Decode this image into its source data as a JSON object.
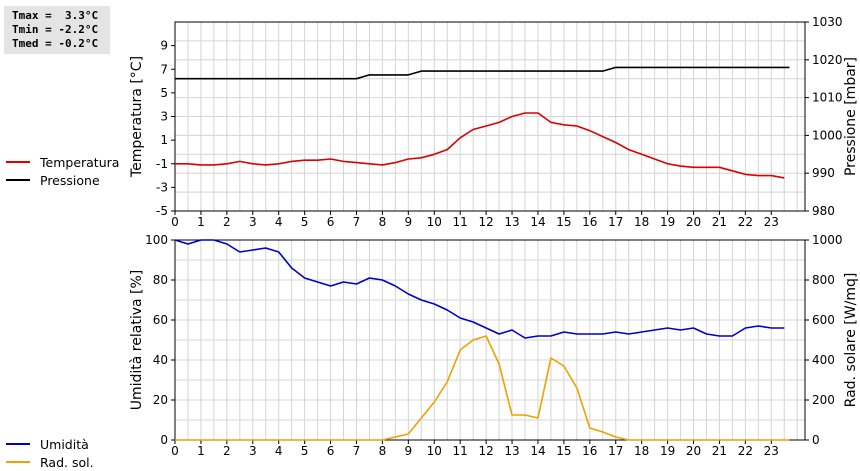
{
  "stats": {
    "tmax": "Tmax =  3.3°C",
    "tmin": "Tmin = -2.2°C",
    "tmed": "Tmed = -0.2°C"
  },
  "colors": {
    "temperature": "#dd0000",
    "pressure": "#000000",
    "humidity": "#0000cc",
    "solar": "#f0a000",
    "grid": "#d4d4d4"
  },
  "legend_top": [
    {
      "label": "Temperatura",
      "color": "#dd0000"
    },
    {
      "label": "Pressione",
      "color": "#000000"
    }
  ],
  "legend_bottom": [
    {
      "label": "Umidità",
      "color": "#0000cc"
    },
    {
      "label": "Rad. sol.",
      "color": "#f0a000"
    }
  ],
  "chart_data": [
    {
      "type": "line",
      "ylabel_left": "Temperatura [°C]",
      "ylabel_right": "Pressione [mbar]",
      "xlim": [
        0,
        24.3
      ],
      "ylim_left": [
        -5,
        11
      ],
      "ylim_right": [
        980,
        1030
      ],
      "xticks": [
        0,
        1,
        2,
        3,
        4,
        5,
        6,
        7,
        8,
        9,
        10,
        11,
        12,
        13,
        14,
        15,
        16,
        17,
        18,
        19,
        20,
        21,
        22,
        23
      ],
      "yticks_left": [
        -5,
        -3,
        -1,
        1,
        3,
        5,
        7,
        9
      ],
      "yticks_right": [
        980,
        990,
        1000,
        1010,
        1020,
        1030
      ],
      "grid": true,
      "series": [
        {
          "name": "Temperatura",
          "axis": "left",
          "x": [
            0,
            0.5,
            1,
            1.5,
            2,
            2.5,
            3,
            3.5,
            4,
            4.5,
            5,
            5.5,
            6,
            6.5,
            7,
            7.5,
            8,
            8.5,
            9,
            9.5,
            10,
            10.5,
            11,
            11.5,
            12,
            12.5,
            13,
            13.5,
            14,
            14.5,
            15,
            15.5,
            16,
            16.5,
            17,
            17.5,
            18,
            18.5,
            19,
            19.5,
            20,
            20.5,
            21,
            21.5,
            22,
            22.5,
            23,
            23.5
          ],
          "y": [
            -1.0,
            -1.0,
            -1.1,
            -1.1,
            -1.0,
            -0.8,
            -1.0,
            -1.1,
            -1.0,
            -0.8,
            -0.7,
            -0.7,
            -0.6,
            -0.8,
            -0.9,
            -1.0,
            -1.1,
            -0.9,
            -0.6,
            -0.5,
            -0.2,
            0.2,
            1.2,
            1.9,
            2.2,
            2.5,
            3.0,
            3.3,
            3.3,
            2.5,
            2.3,
            2.2,
            1.8,
            1.3,
            0.8,
            0.2,
            -0.2,
            -0.6,
            -1.0,
            -1.2,
            -1.3,
            -1.3,
            -1.3,
            -1.6,
            -1.9,
            -2.0,
            -2.0,
            -2.2
          ]
        },
        {
          "name": "Pressione",
          "axis": "right",
          "x": [
            0,
            1,
            2,
            3,
            4,
            5,
            6,
            7,
            7.5,
            8,
            9,
            9.5,
            10,
            11,
            12,
            13,
            14,
            15,
            16,
            16.5,
            17,
            18,
            19,
            20,
            21,
            22,
            23,
            23.7
          ],
          "y": [
            1015,
            1015,
            1015,
            1015,
            1015,
            1015,
            1015,
            1015,
            1016,
            1016,
            1016,
            1017,
            1017,
            1017,
            1017,
            1017,
            1017,
            1017,
            1017,
            1017,
            1018,
            1018,
            1018,
            1018,
            1018,
            1018,
            1018,
            1018
          ]
        }
      ]
    },
    {
      "type": "line",
      "ylabel_left": "Umidità relativa [%]",
      "ylabel_right": "Rad. solare [W/mq]",
      "xlim": [
        0,
        24.3
      ],
      "ylim_left": [
        0,
        100
      ],
      "ylim_right": [
        0,
        1000
      ],
      "xticks": [
        0,
        1,
        2,
        3,
        4,
        5,
        6,
        7,
        8,
        9,
        10,
        11,
        12,
        13,
        14,
        15,
        16,
        17,
        18,
        19,
        20,
        21,
        22,
        23
      ],
      "yticks_left": [
        0,
        20,
        40,
        60,
        80,
        100
      ],
      "yticks_right": [
        0,
        200,
        400,
        600,
        800,
        1000
      ],
      "grid": true,
      "series": [
        {
          "name": "Umidità",
          "axis": "left",
          "x": [
            0,
            0.5,
            1,
            1.5,
            2,
            2.5,
            3,
            3.5,
            4,
            4.5,
            5,
            5.5,
            6,
            6.5,
            7,
            7.5,
            8,
            8.5,
            9,
            9.5,
            10,
            10.5,
            11,
            11.5,
            12,
            12.5,
            13,
            13.5,
            14,
            14.5,
            15,
            15.5,
            16,
            16.5,
            17,
            17.5,
            18,
            18.5,
            19,
            19.5,
            20,
            20.5,
            21,
            21.5,
            22,
            22.5,
            23,
            23.5
          ],
          "y": [
            100,
            98,
            100,
            100,
            98,
            94,
            95,
            96,
            94,
            86,
            81,
            79,
            77,
            79,
            78,
            81,
            80,
            77,
            73,
            70,
            68,
            65,
            61,
            59,
            56,
            53,
            55,
            51,
            52,
            52,
            54,
            53,
            53,
            53,
            54,
            53,
            54,
            55,
            56,
            55,
            56,
            53,
            52,
            52,
            56,
            57,
            56,
            56
          ]
        },
        {
          "name": "Rad. sol.",
          "axis": "right",
          "x": [
            0,
            8,
            8.5,
            9,
            9.5,
            10,
            10.5,
            11,
            11.5,
            12,
            12.5,
            13,
            13.5,
            14,
            14.5,
            15,
            15.5,
            16,
            16.5,
            17,
            17.5,
            18,
            19,
            20,
            21,
            22,
            23,
            23.7
          ],
          "y": [
            0,
            0,
            15,
            30,
            110,
            190,
            290,
            450,
            500,
            520,
            380,
            125,
            125,
            110,
            410,
            370,
            260,
            60,
            40,
            15,
            0,
            0,
            0,
            0,
            0,
            0,
            0,
            0
          ]
        }
      ]
    }
  ]
}
